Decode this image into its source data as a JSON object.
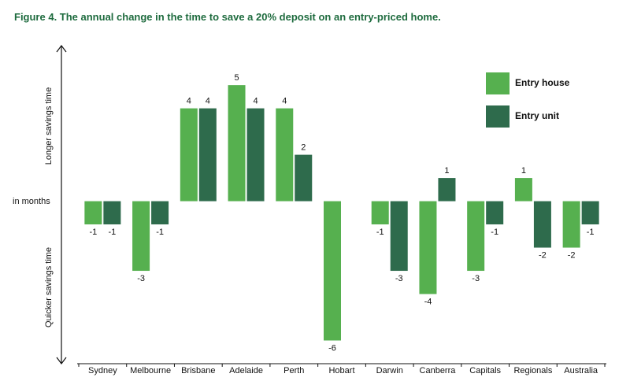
{
  "chart_data": {
    "type": "bar",
    "title": "Figure 4. The annual change in the time to save a 20% deposit on an entry-priced home.",
    "y_label_top": "Longer savings time",
    "y_label_bottom": "Quicker savings time",
    "zero_label": "in months",
    "categories": [
      "Sydney",
      "Melbourne",
      "Brisbane",
      "Adelaide",
      "Perth",
      "Hobart",
      "Darwin",
      "Canberra",
      "Capitals",
      "Regionals",
      "Australia"
    ],
    "series": [
      {
        "name": "Entry house",
        "color": "#56b04f",
        "values": [
          -1,
          -3,
          4,
          5,
          4,
          -6,
          -1,
          -4,
          -3,
          1,
          -2
        ]
      },
      {
        "name": "Entry unit",
        "color": "#2e6b4c",
        "values": [
          -1,
          -1,
          4,
          4,
          2,
          null,
          -3,
          1,
          -1,
          -2,
          -1
        ]
      }
    ],
    "ylim": [
      -7,
      6.7
    ],
    "legend": "top-right"
  }
}
